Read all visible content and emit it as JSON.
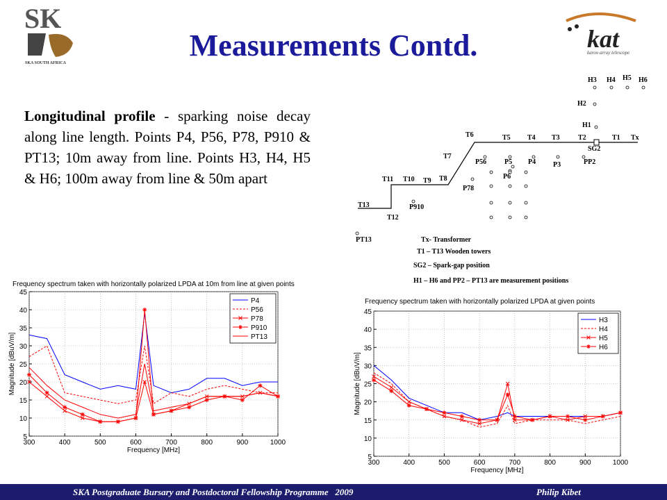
{
  "slide": {
    "title": "Measurements Contd.",
    "paragraph": {
      "lead": "Longitudinal profile",
      "text": " - sparking noise decay along line length. Points P4, P56, P78, P910 & PT13; 10m away from line. Points H3, H4, H5 & H6; 100m away from line & 50m apart"
    },
    "footer": {
      "left": "SKA Postgraduate Bursary and Postdoctoral Fellowship Programme   2009",
      "right": "Philip Kibet"
    },
    "logo_left": {
      "mark": "SK",
      "caption": "SKA SOUTH AFRICA"
    },
    "logo_right": {
      "mark": "kat",
      "caption": "karoo array telescope"
    }
  },
  "diagram": {
    "labels": [
      "H3",
      "H4",
      "H5",
      "H6",
      "H2",
      "H1",
      "T6",
      "T5",
      "T4",
      "T3",
      "T2",
      "T1",
      "Tx",
      "SG2",
      "T7",
      "T8",
      "T9",
      "T10",
      "T11",
      "T12",
      "T13",
      "P56",
      "P5",
      "P4",
      "P3",
      "PP2",
      "P6",
      "P78",
      "P910",
      "PT13"
    ],
    "notes": [
      "Tx- Transformer",
      "T1 – T13 Wooden towers",
      "SG2 – Spark-gap position",
      "H1 – H6 and PP2 – PT13 are measurement positions"
    ]
  },
  "chart_data": [
    {
      "type": "line",
      "title": "Frequency spectrum taken with horizontally polarized LPDA at 10m from line at given points",
      "x_label": "Frequency [MHz]",
      "y_label": "Magnitude [dBuV/m]",
      "x": [
        300,
        350,
        400,
        450,
        500,
        550,
        600,
        625,
        650,
        700,
        750,
        800,
        850,
        900,
        950,
        1000
      ],
      "series": [
        {
          "name": "P4",
          "color": "#0000ff",
          "dash": false,
          "marker": "none",
          "values": [
            33,
            32,
            22,
            20,
            18,
            19,
            18,
            39,
            19,
            17,
            18,
            21,
            21,
            19,
            20,
            20
          ]
        },
        {
          "name": "P56",
          "color": "#ff0000",
          "dash": true,
          "marker": "none",
          "values": [
            27,
            30,
            17,
            16,
            15,
            14,
            15,
            30,
            14,
            17,
            16,
            18,
            19,
            18,
            17,
            17
          ]
        },
        {
          "name": "P78",
          "color": "#ff0000",
          "dash": false,
          "marker": "x",
          "values": [
            20,
            16,
            12,
            10,
            9,
            9,
            10,
            20,
            11,
            12,
            14,
            16,
            16,
            16,
            17,
            16
          ]
        },
        {
          "name": "P910",
          "color": "#ff0000",
          "dash": false,
          "marker": "star",
          "values": [
            22,
            17,
            13,
            11,
            9,
            9,
            10,
            40,
            11,
            12,
            13,
            15,
            16,
            15,
            19,
            16
          ]
        },
        {
          "name": "PT13",
          "color": "#ff0000",
          "dash": false,
          "marker": "none",
          "values": [
            24,
            19,
            15,
            13,
            11,
            10,
            11,
            25,
            12,
            13,
            14,
            16,
            16,
            16,
            17,
            16
          ]
        }
      ],
      "xlim": [
        300,
        1000
      ],
      "xticks": [
        300,
        400,
        500,
        600,
        700,
        800,
        900,
        1000
      ],
      "ylim": [
        5,
        45
      ],
      "yticks": [
        5,
        10,
        15,
        20,
        25,
        30,
        35,
        40,
        45
      ],
      "grid": true,
      "legend": "northeast"
    },
    {
      "type": "line",
      "title": "Frequency spectrum taken with horizontally polarized LPDA at given points",
      "x_label": "Frequency [MHz]",
      "y_label": "Magnitude [dBuV/m]",
      "x": [
        300,
        350,
        400,
        450,
        500,
        550,
        600,
        650,
        680,
        700,
        750,
        800,
        850,
        900,
        950,
        1000
      ],
      "series": [
        {
          "name": "H3",
          "color": "#0000ff",
          "dash": false,
          "marker": "none",
          "values": [
            30,
            26,
            21,
            19,
            17,
            17,
            15,
            16,
            17,
            16,
            16,
            16,
            16,
            16,
            16,
            17
          ]
        },
        {
          "name": "H4",
          "color": "#ff0000",
          "dash": true,
          "marker": "none",
          "values": [
            28,
            25,
            20,
            18,
            16,
            15,
            13,
            14,
            19,
            14,
            15,
            15,
            15,
            14,
            15,
            16
          ]
        },
        {
          "name": "H5",
          "color": "#ff0000",
          "dash": false,
          "marker": "x",
          "values": [
            27,
            24,
            20,
            18,
            16,
            15,
            14,
            15,
            25,
            15,
            15,
            16,
            15,
            16,
            16,
            17
          ]
        },
        {
          "name": "H6",
          "color": "#ff0000",
          "dash": false,
          "marker": "star",
          "values": [
            26,
            23,
            19,
            18,
            17,
            16,
            15,
            15,
            22,
            16,
            15,
            16,
            16,
            15,
            16,
            17
          ]
        }
      ],
      "xlim": [
        300,
        1000
      ],
      "xticks": [
        300,
        400,
        500,
        600,
        700,
        800,
        900,
        1000
      ],
      "ylim": [
        5,
        45
      ],
      "yticks": [
        5,
        10,
        15,
        20,
        25,
        30,
        35,
        40,
        45
      ],
      "grid": true,
      "legend": "northeast"
    }
  ]
}
